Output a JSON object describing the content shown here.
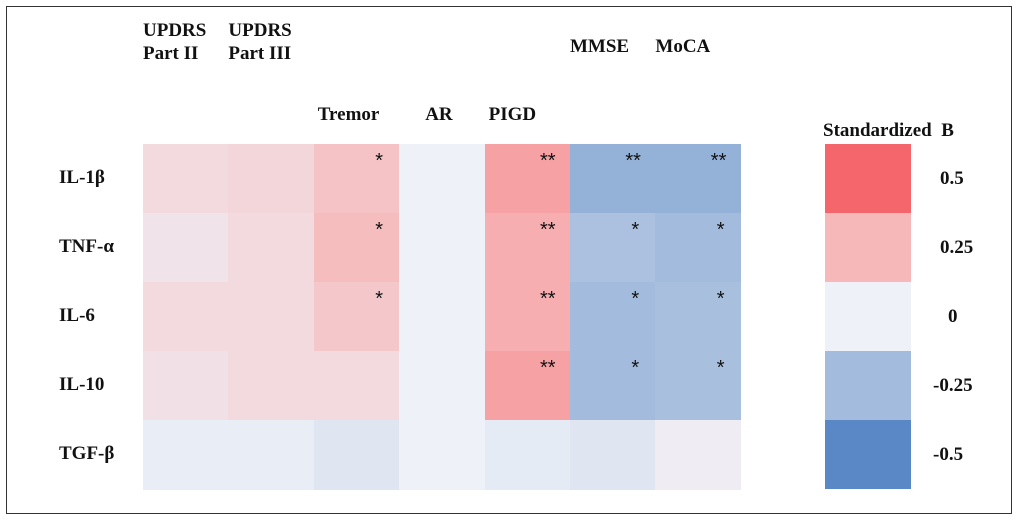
{
  "chart_data": {
    "type": "heatmap",
    "legend_title": "Standardized  B",
    "legend_placement": "right",
    "columns": [
      {
        "label": "UPDRS\nPart II",
        "tier": 0
      },
      {
        "label": "UPDRS\nPart III",
        "tier": 0
      },
      {
        "label": "Tremor",
        "tier": 1
      },
      {
        "label": "AR",
        "tier": 1
      },
      {
        "label": "PIGD",
        "tier": 1
      },
      {
        "label": "MMSE",
        "tier": 0
      },
      {
        "label": "MoCA",
        "tier": 0
      }
    ],
    "rows": [
      "IL-1β",
      "TNF-α",
      "IL-6",
      "IL-10",
      "TGF-β"
    ],
    "values": [
      [
        0.1,
        0.12,
        0.2,
        0.0,
        0.32,
        -0.3,
        -0.3
      ],
      [
        0.06,
        0.1,
        0.23,
        0.0,
        0.28,
        -0.22,
        -0.25
      ],
      [
        0.1,
        0.1,
        0.18,
        0.0,
        0.28,
        -0.25,
        -0.23
      ],
      [
        0.07,
        0.1,
        0.1,
        0.0,
        0.32,
        -0.25,
        -0.23
      ],
      [
        -0.02,
        -0.02,
        -0.05,
        0.0,
        -0.03,
        -0.05,
        0.02
      ]
    ],
    "significance": [
      [
        "",
        "",
        "*",
        "",
        "**",
        "**",
        "**"
      ],
      [
        "",
        "",
        "*",
        "",
        "**",
        "*",
        "*"
      ],
      [
        "",
        "",
        "*",
        "",
        "**",
        "*",
        "*"
      ],
      [
        "",
        "",
        "",
        "",
        "**",
        "*",
        "*"
      ],
      [
        "",
        "",
        "",
        "",
        "",
        "",
        ""
      ]
    ],
    "scale": [
      {
        "value": 0.5,
        "label": "0.5",
        "color": "#f4666b"
      },
      {
        "value": 0.25,
        "label": "0.25",
        "color": "#f7b8ba"
      },
      {
        "value": 0,
        "label": "0",
        "color": "#eef1f8"
      },
      {
        "value": -0.25,
        "label": "-0.25",
        "color": "#a3bbdc"
      },
      {
        "value": -0.5,
        "label": "-0.5",
        "color": "#5a87c5"
      }
    ]
  }
}
